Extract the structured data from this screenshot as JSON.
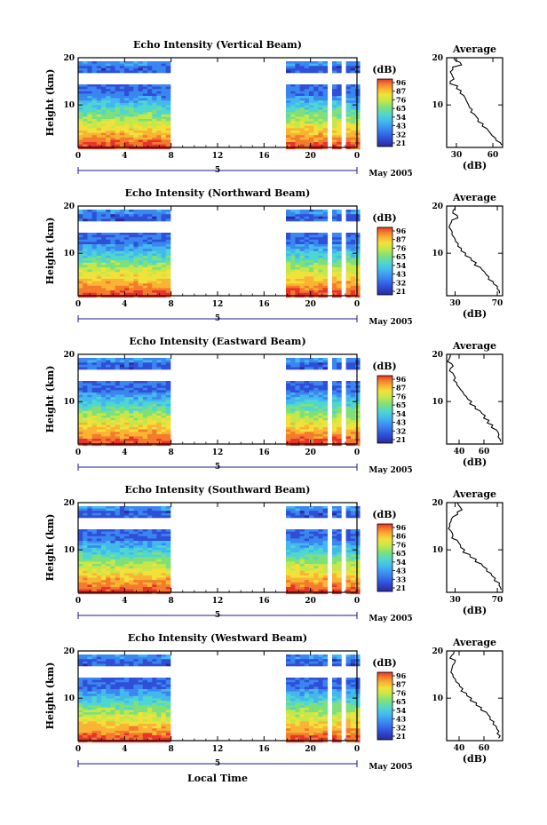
{
  "chart_data": [
    {
      "type": "heatmap",
      "title": "Echo Intensity (Vertical Beam)",
      "ylabel": "Height (km)",
      "x_ticks": [
        "0",
        "4",
        "8",
        "12",
        "16",
        "20",
        "0"
      ],
      "y_ticks": [
        "20",
        "10"
      ],
      "day_label": "5",
      "month_label": "May 2005",
      "colorbar_unit": "(dB)",
      "colorbar_ticks": [
        "96",
        "87",
        "76",
        "65",
        "54",
        "43",
        "32",
        "21"
      ],
      "data_gap_hours": [
        7.8,
        17.8
      ],
      "profile_gap_hours": [
        [
          21.3,
          21.6
        ],
        [
          22.6,
          23.0
        ]
      ],
      "avg": {
        "title": "Average",
        "xlabel": "(dB)",
        "x_ticks": [
          "30",
          "60"
        ],
        "xlim": [
          22,
          68
        ],
        "y_ticks": [
          "20",
          "10"
        ],
        "profile_heights_km": [
          20,
          19,
          18,
          17,
          16,
          15,
          14,
          13,
          12,
          11,
          10,
          9,
          8,
          7,
          6,
          5,
          4,
          3,
          2
        ],
        "profile_db": [
          28,
          33,
          27,
          25,
          27,
          25,
          31,
          34,
          36,
          38,
          40,
          43,
          45,
          48,
          52,
          55,
          58,
          62,
          66
        ]
      }
    },
    {
      "type": "heatmap",
      "title": "Echo Intensity (Northward Beam)",
      "ylabel": "Height (km)",
      "x_ticks": [
        "0",
        "4",
        "8",
        "12",
        "16",
        "20",
        "0"
      ],
      "y_ticks": [
        "20",
        "10"
      ],
      "day_label": "5",
      "month_label": "May 2005",
      "colorbar_unit": "(dB)",
      "colorbar_ticks": [
        "96",
        "87",
        "76",
        "65",
        "54",
        "43",
        "32",
        "21"
      ],
      "data_gap_hours": [
        7.8,
        17.8
      ],
      "profile_gap_hours": [
        [
          21.3,
          21.6
        ],
        [
          22.6,
          23.0
        ]
      ],
      "avg": {
        "title": "Average",
        "xlabel": "(dB)",
        "x_ticks": [
          "30",
          "70"
        ],
        "xlim": [
          22,
          75
        ],
        "y_ticks": [
          "20",
          "10"
        ],
        "profile_heights_km": [
          20,
          19,
          18,
          17,
          16,
          15,
          14,
          13,
          12,
          11,
          10,
          9,
          8,
          7,
          6,
          5,
          4,
          3,
          2
        ],
        "profile_db": [
          30,
          28,
          32,
          27,
          25,
          26,
          27,
          30,
          33,
          36,
          40,
          45,
          50,
          54,
          58,
          62,
          66,
          70,
          72
        ]
      }
    },
    {
      "type": "heatmap",
      "title": "Echo Intensity (Eastward Beam)",
      "ylabel": "Height (km)",
      "x_ticks": [
        "0",
        "4",
        "8",
        "12",
        "16",
        "20",
        "0"
      ],
      "y_ticks": [
        "20",
        "10"
      ],
      "day_label": "5",
      "month_label": "May 2005",
      "colorbar_unit": "(dB)",
      "colorbar_ticks": [
        "96",
        "87",
        "76",
        "65",
        "54",
        "43",
        "32",
        "21"
      ],
      "data_gap_hours": [
        7.8,
        17.8
      ],
      "profile_gap_hours": [
        [
          21.3,
          21.6
        ],
        [
          22.6,
          23.0
        ]
      ],
      "avg": {
        "title": "Average",
        "xlabel": "(dB)",
        "x_ticks": [
          "40",
          "60"
        ],
        "xlim": [
          30,
          75
        ],
        "y_ticks": [
          "20",
          "10"
        ],
        "profile_heights_km": [
          20,
          19,
          18,
          17,
          16,
          15,
          14,
          13,
          12,
          11,
          10,
          9,
          8,
          7,
          6,
          5,
          4,
          3,
          2
        ],
        "profile_db": [
          33,
          32,
          34,
          33,
          35,
          37,
          38,
          40,
          43,
          46,
          50,
          53,
          57,
          61,
          64,
          67,
          70,
          72,
          73
        ]
      }
    },
    {
      "type": "heatmap",
      "title": "Echo Intensity (Southward Beam)",
      "ylabel": "Height (km)",
      "x_ticks": [
        "0",
        "4",
        "8",
        "12",
        "16",
        "20",
        "0"
      ],
      "y_ticks": [
        "20",
        "10"
      ],
      "day_label": "5",
      "month_label": "May 2005",
      "colorbar_unit": "(dB)",
      "colorbar_ticks": [
        "96",
        "86",
        "76",
        "65",
        "54",
        "43",
        "33",
        "21"
      ],
      "data_gap_hours": [
        7.8,
        17.8
      ],
      "profile_gap_hours": [
        [
          21.3,
          21.6
        ],
        [
          22.6,
          23.0
        ]
      ],
      "avg": {
        "title": "Average",
        "xlabel": "(dB)",
        "x_ticks": [
          "30",
          "70"
        ],
        "xlim": [
          22,
          75
        ],
        "y_ticks": [
          "20",
          "10"
        ],
        "profile_heights_km": [
          20,
          19,
          18,
          17,
          16,
          15,
          14,
          13,
          12,
          11,
          10,
          9,
          8,
          7,
          6,
          5,
          4,
          3,
          2
        ],
        "profile_db": [
          32,
          35,
          32,
          28,
          26,
          25,
          26,
          28,
          32,
          35,
          39,
          44,
          50,
          55,
          60,
          64,
          68,
          72,
          73
        ]
      }
    },
    {
      "type": "heatmap",
      "title": "Echo Intensity (Westward Beam)",
      "ylabel": "Height (km)",
      "x_ticks": [
        "0",
        "4",
        "8",
        "12",
        "16",
        "20",
        "0"
      ],
      "y_ticks": [
        "20",
        "10"
      ],
      "day_label": "5",
      "month_label": "May 2005",
      "colorbar_unit": "(dB)",
      "colorbar_ticks": [
        "96",
        "87",
        "76",
        "65",
        "54",
        "43",
        "32",
        "21"
      ],
      "data_gap_hours": [
        7.8,
        17.8
      ],
      "profile_gap_hours": [
        [
          21.3,
          21.6
        ],
        [
          22.6,
          23.0
        ]
      ],
      "avg": {
        "title": "Average",
        "xlabel": "(dB)",
        "x_ticks": [
          "40",
          "60"
        ],
        "xlim": [
          30,
          75
        ],
        "y_ticks": [
          "20",
          "10"
        ],
        "profile_heights_km": [
          20,
          19,
          18,
          17,
          16,
          15,
          14,
          13,
          12,
          11,
          10,
          9,
          8,
          7,
          6,
          5,
          4,
          3,
          2
        ],
        "profile_db": [
          36,
          34,
          37,
          35,
          34,
          35,
          37,
          40,
          43,
          46,
          50,
          54,
          58,
          62,
          65,
          68,
          70,
          72,
          73
        ]
      }
    }
  ],
  "xlabel": "Local Time",
  "colormap": [
    "#2a2a9a",
    "#2f4fd8",
    "#3a86f0",
    "#43b8ef",
    "#4fd6d0",
    "#7fe07a",
    "#c4e84a",
    "#f2e13a",
    "#f8b432",
    "#f47a2c",
    "#e8332a"
  ]
}
